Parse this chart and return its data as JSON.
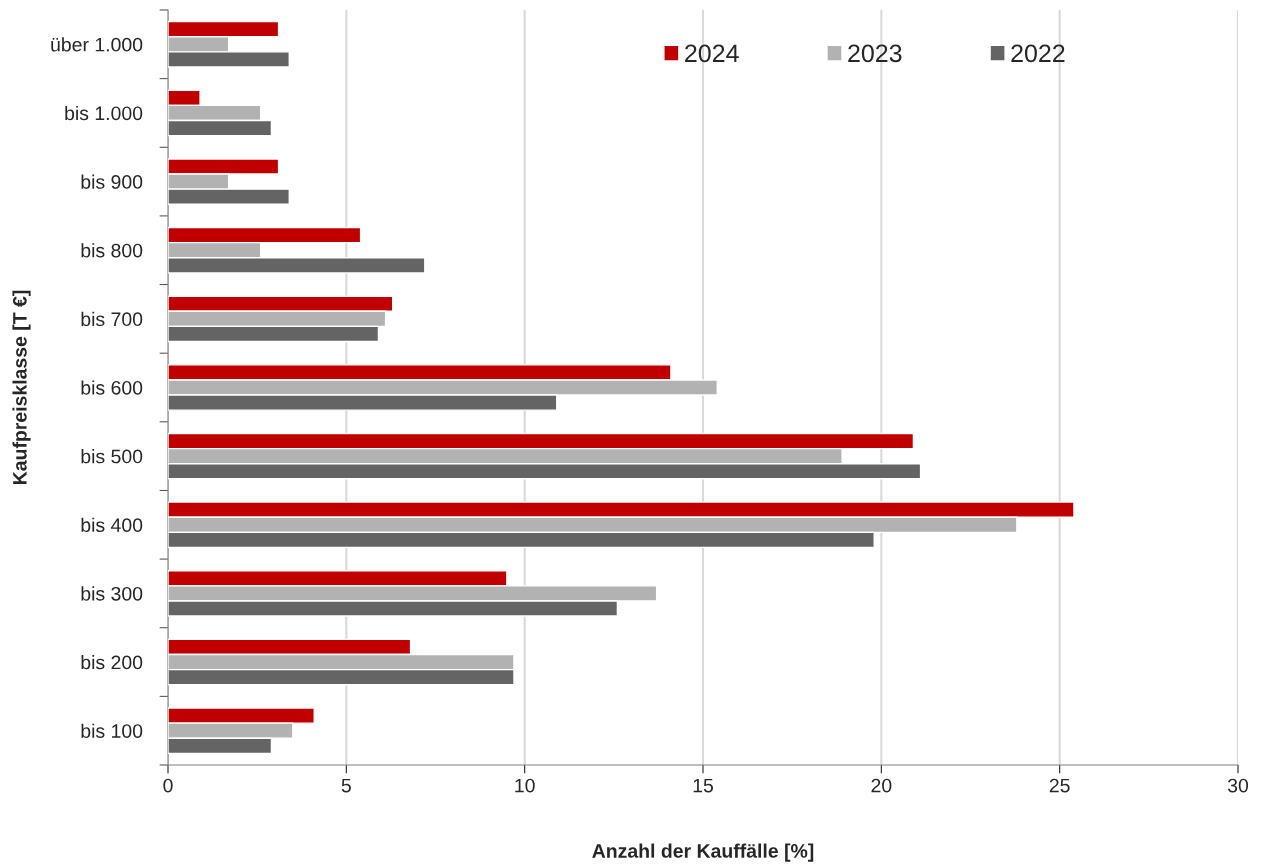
{
  "chart_data": {
    "type": "bar",
    "orientation": "horizontal",
    "xlabel": "Anzahl der Kauffälle [%]",
    "ylabel": "Kaufpreisklasse [T €]",
    "categories": [
      "über 1.000",
      "bis 1.000",
      "bis 900",
      "bis 800",
      "bis 700",
      "bis 600",
      "bis 500",
      "bis 400",
      "bis 300",
      "bis 200",
      "bis 100"
    ],
    "series": [
      {
        "name": "2024",
        "color": "#c00000",
        "values": [
          3.1,
          0.9,
          3.1,
          5.4,
          6.3,
          14.1,
          20.9,
          25.4,
          9.5,
          6.8,
          4.1
        ]
      },
      {
        "name": "2023",
        "color": "#b2b2b2",
        "values": [
          1.7,
          2.6,
          1.7,
          2.6,
          6.1,
          15.4,
          18.9,
          23.8,
          13.7,
          9.7,
          3.5
        ]
      },
      {
        "name": "2022",
        "color": "#646464",
        "values": [
          3.4,
          2.9,
          3.4,
          7.2,
          5.9,
          10.9,
          21.1,
          19.8,
          12.6,
          9.7,
          2.9
        ]
      }
    ],
    "xlim": [
      0,
      30
    ],
    "xticks": [
      0,
      5,
      10,
      15,
      20,
      25,
      30
    ],
    "grid": "x",
    "legend": "top right"
  }
}
